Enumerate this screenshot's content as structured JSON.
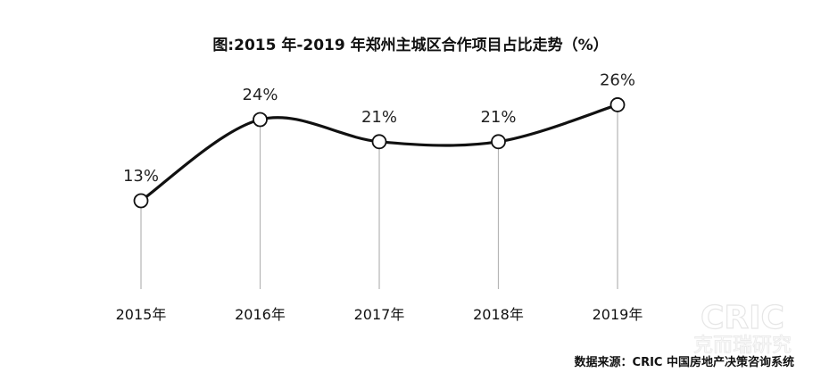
{
  "chart_data": {
    "type": "line",
    "title": "图:2015 年-2019 年郑州主城区合作项目占比走势（%）",
    "categories": [
      "2015年",
      "2016年",
      "2017年",
      "2018年",
      "2019年"
    ],
    "values": [
      13,
      24,
      21,
      21,
      26
    ],
    "data_labels": [
      "13%",
      "24%",
      "21%",
      "21%",
      "26%"
    ],
    "ylim": [
      0,
      30
    ],
    "grid": false,
    "legend": "none",
    "line_color": "#111111",
    "marker_fill": "#ffffff",
    "drop_line_color": "#b5b5b5"
  },
  "source": "数据来源：CRIC 中国房地产决策咨询系统",
  "watermark": {
    "brand": "CRIC",
    "sub": "克而瑞研究"
  }
}
